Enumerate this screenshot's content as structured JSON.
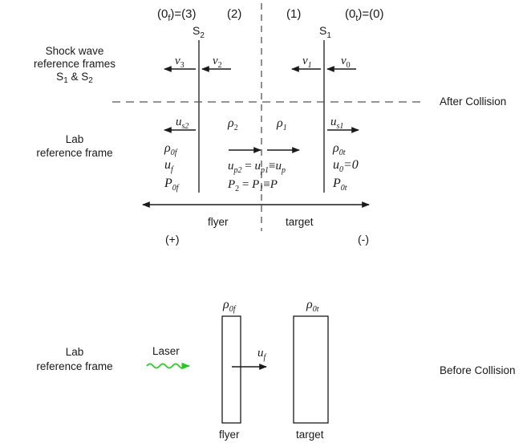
{
  "top": {
    "regions": {
      "r3": "(0f)=(3)",
      "r2": "(2)",
      "r1": "(1)",
      "r0": "(0t)=(0)"
    },
    "s2_label": "S2",
    "s1_label": "S1",
    "shock_frames_label": [
      "Shock wave",
      "reference frames",
      "S1 & S2"
    ],
    "velocities": {
      "v3": "v3",
      "v2": "v2",
      "v1": "v1",
      "v0": "v0"
    },
    "after_collision": "After Collision",
    "lab_frame_label": [
      "Lab",
      "reference frame"
    ],
    "us2": "us2",
    "us1": "us1",
    "rho2": "ρ2",
    "rho1": "ρ1",
    "left_state": [
      "ρ0f",
      "uf",
      "P0f"
    ],
    "right_state": [
      "ρ0t",
      "u0=0",
      "P0t"
    ],
    "center_eq1": "up2 = up1≡up",
    "center_eq2": "P2 = P1≡P",
    "flyer": "flyer",
    "target": "target",
    "plus": "(+)",
    "minus": "(-)"
  },
  "bottom": {
    "rho0f": "ρ0f",
    "rho0t": "ρ0t",
    "lab_frame_label": [
      "Lab",
      "reference frame"
    ],
    "laser": "Laser",
    "uf": "uf",
    "before_collision": "Before Collision",
    "flyer": "flyer",
    "target": "target"
  },
  "colors": {
    "ink": "#1a1a1a",
    "laser": "#22cc22",
    "dash": "#555555"
  },
  "icons": {
    "arrowhead": "filled-triangle",
    "laser": "wavy-arrow"
  }
}
